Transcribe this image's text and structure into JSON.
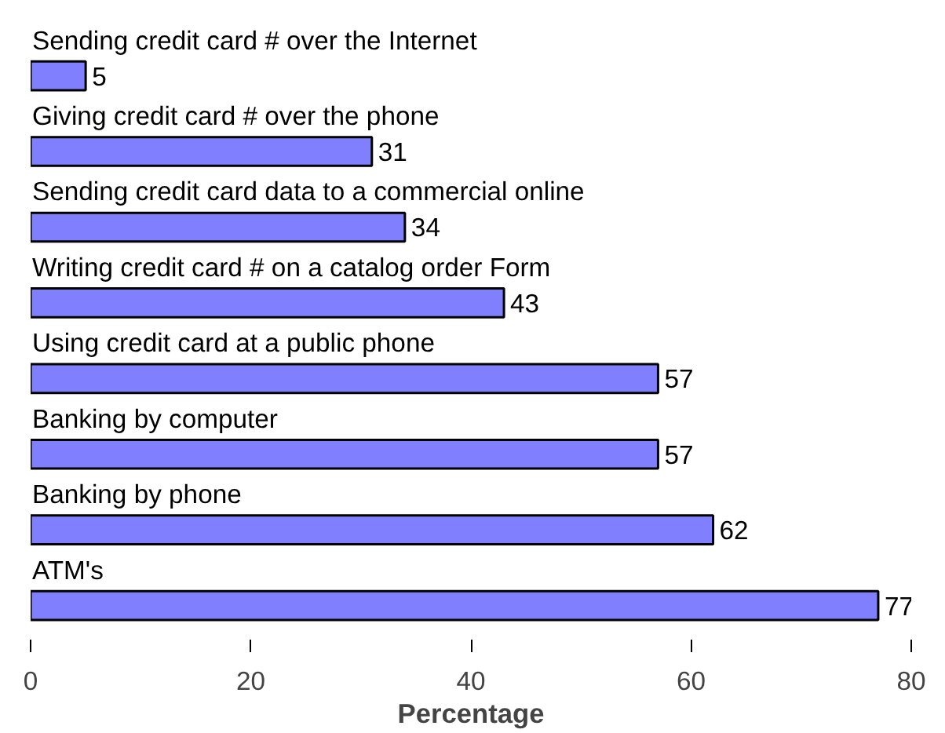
{
  "chart_data": {
    "type": "bar",
    "orientation": "horizontal",
    "xlabel": "Percentage",
    "categories": [
      "Sending credit card # over the Internet",
      "Giving credit card # over the phone",
      "Sending credit card data to a commercial online",
      "Writing credit card # on a catalog order Form",
      "Using credit card at a public phone",
      "Banking by computer",
      "Banking by phone",
      "ATM's"
    ],
    "values": [
      5,
      31,
      34,
      43,
      57,
      57,
      62,
      77
    ],
    "color": "#8080ff",
    "xlim": [
      0,
      80
    ],
    "xticks": [
      0,
      20,
      40,
      60,
      80
    ],
    "data_labels": true,
    "grid": false
  }
}
